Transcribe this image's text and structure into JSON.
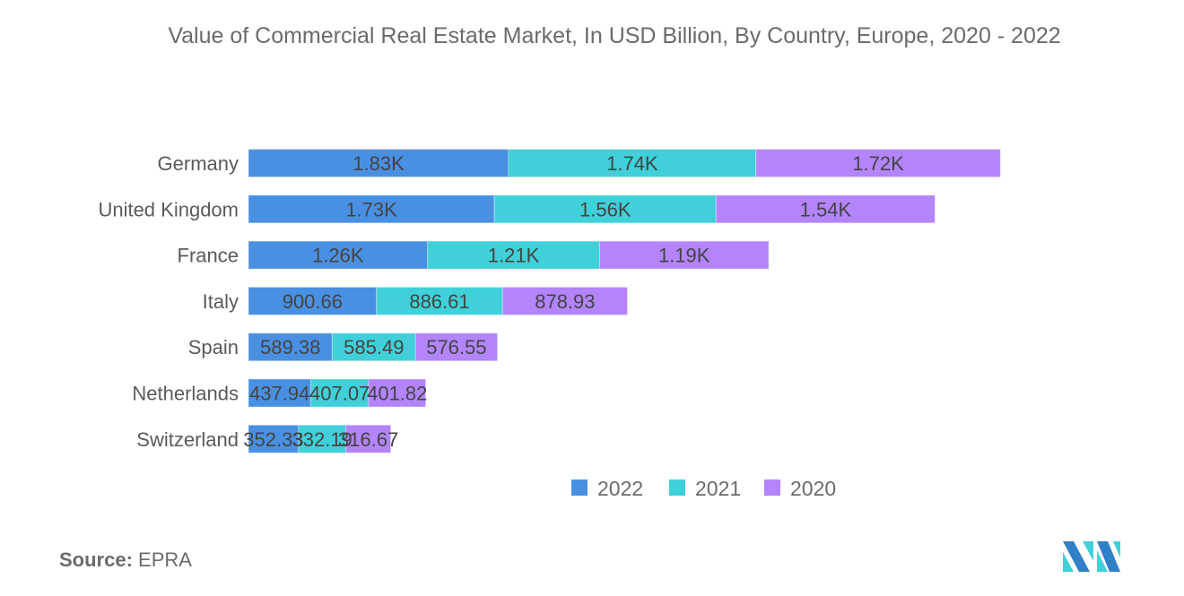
{
  "chart_data": {
    "type": "bar",
    "orientation": "horizontal",
    "stacked": true,
    "title": "Value of Commercial Real Estate Market, In USD Billion, By Country, Europe, 2020 - 2022",
    "xlabel": "",
    "ylabel": "",
    "xlim": [
      0,
      5400
    ],
    "grid": false,
    "legend_position": "bottom",
    "categories": [
      "Germany",
      "United Kingdom",
      "France",
      "Italy",
      "Spain",
      "Netherlands",
      "Switzerland"
    ],
    "series": [
      {
        "name": "2022",
        "color": "#4a90e2",
        "values": [
          1830,
          1730,
          1260,
          900.66,
          589.38,
          437.94,
          352.33
        ],
        "labels": [
          "1.83K",
          "1.73K",
          "1.26K",
          "900.66",
          "589.38",
          "437.94",
          "352.33"
        ]
      },
      {
        "name": "2021",
        "color": "#3fd0d9",
        "values": [
          1740,
          1560,
          1210,
          886.61,
          585.49,
          407.07,
          332.19
        ],
        "labels": [
          "1.74K",
          "1.56K",
          "1.21K",
          "886.61",
          "585.49",
          "407.07",
          "332.19"
        ]
      },
      {
        "name": "2020",
        "color": "#b384fc",
        "values": [
          1720,
          1540,
          1190,
          878.93,
          576.55,
          401.82,
          316.67
        ],
        "labels": [
          "1.72K",
          "1.54K",
          "1.19K",
          "878.93",
          "576.55",
          "401.82",
          "316.67"
        ]
      }
    ]
  },
  "source": {
    "label": "Source:",
    "value": "EPRA"
  },
  "logo": {
    "icon": "mordor-intelligence-logo-icon"
  }
}
